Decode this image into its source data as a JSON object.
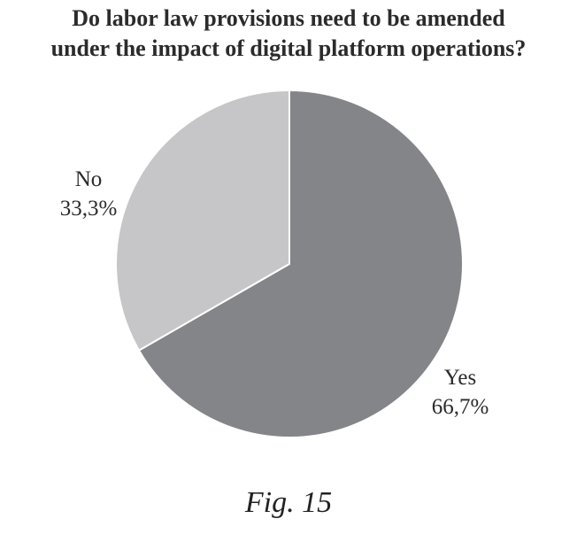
{
  "chart_data": {
    "type": "pie",
    "title_lines": [
      "Do labor law provisions need to be amended",
      "under the impact of digital platform operations?"
    ],
    "slices": [
      {
        "label": "Yes",
        "value": 66.7,
        "value_text": "66,7%",
        "color": "#848589"
      },
      {
        "label": "No",
        "value": 33.3,
        "value_text": "33,3%",
        "color": "#c6c6c8"
      }
    ],
    "start_position": "12 o'clock",
    "direction": "clockwise",
    "legend": "none"
  },
  "caption": "Fig. 15"
}
